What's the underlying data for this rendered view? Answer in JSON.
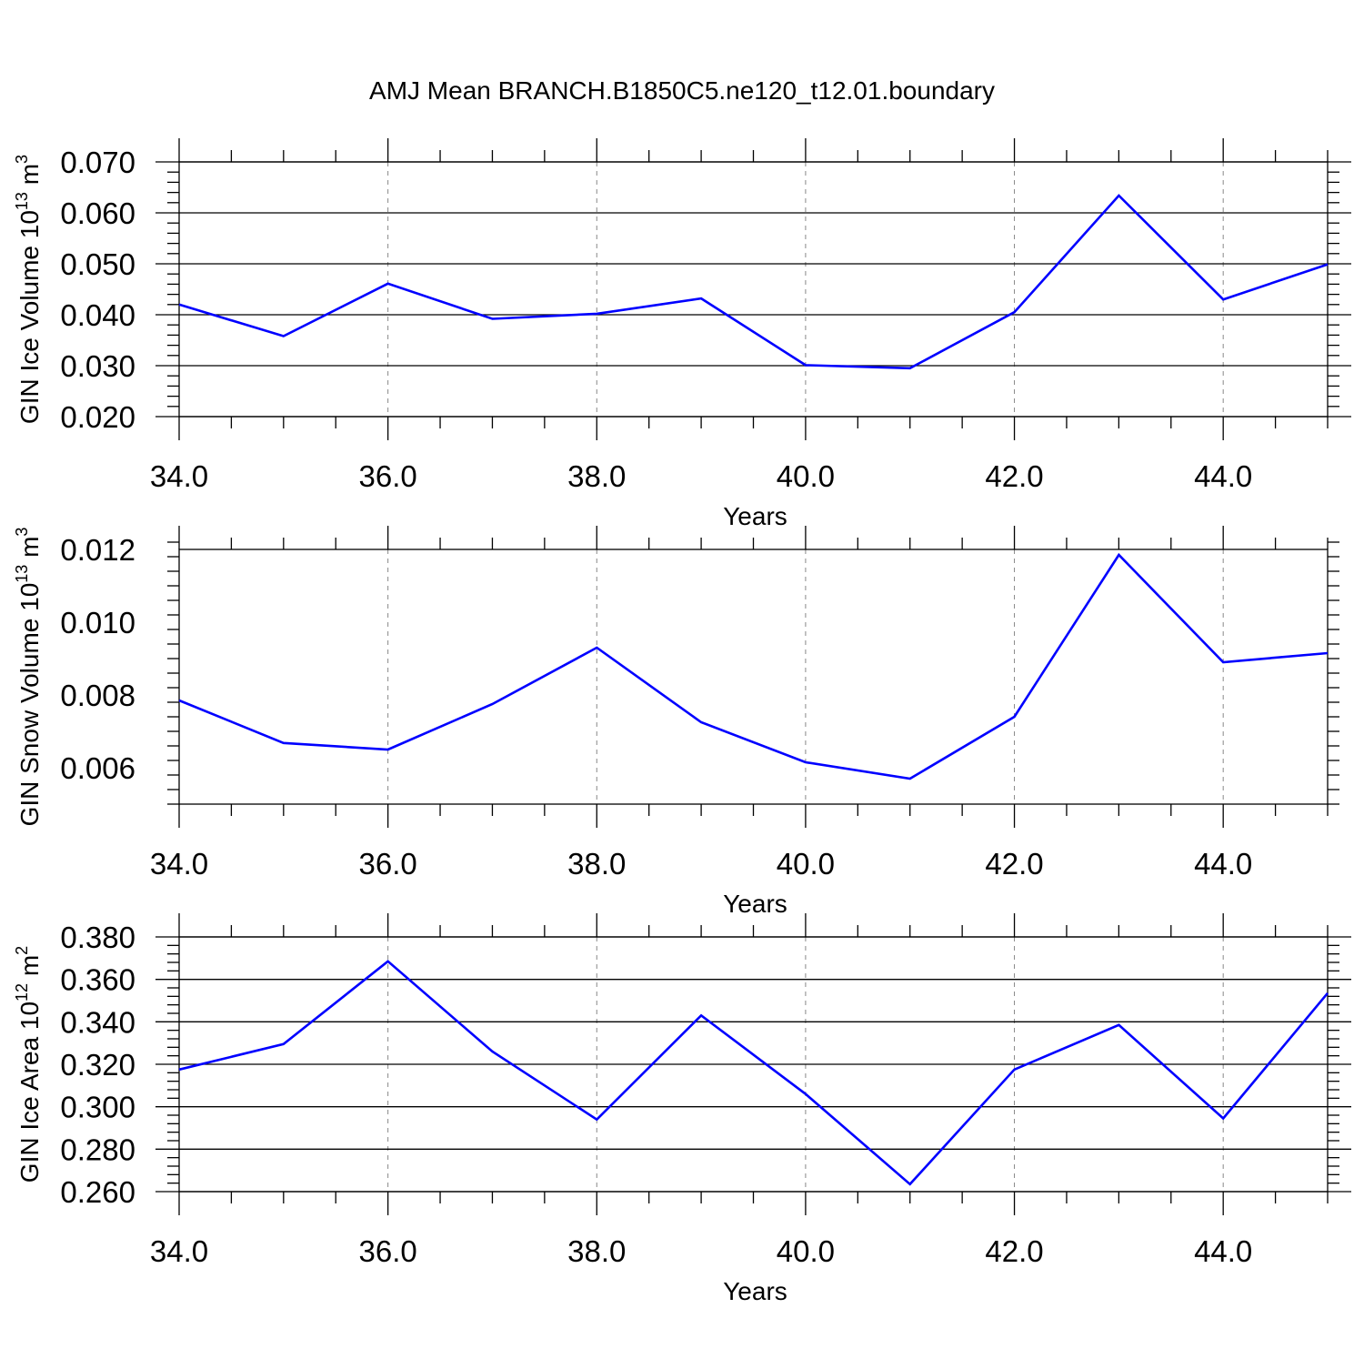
{
  "title": "AMJ Mean BRANCH.B1850C5.ne120_t12.01.boundary",
  "line_color": "#0000ff",
  "chart_data": [
    {
      "type": "line",
      "title": "AMJ Mean BRANCH.B1850C5.ne120_t12.01.boundary",
      "ylabel": "GIN Ice Volume 10",
      "ylabel_exp": "13",
      "ylabel_unit": "m",
      "ylabel_unit_exp": "3",
      "xlabel": "Years",
      "x": [
        34,
        35,
        36,
        37,
        38,
        39,
        40,
        41,
        42,
        43,
        44,
        45
      ],
      "series": [
        {
          "values": [
            0.042,
            0.0358,
            0.0461,
            0.0392,
            0.0402,
            0.0432,
            0.0301,
            0.0295,
            0.0405,
            0.0634,
            0.043,
            0.0499
          ]
        }
      ],
      "xlim": [
        34,
        45
      ],
      "ylim": [
        0.02,
        0.07
      ],
      "xticks": [
        "34.0",
        "36.0",
        "38.0",
        "40.0",
        "42.0",
        "44.0"
      ],
      "yticks": [
        "0.020",
        "0.030",
        "0.040",
        "0.050",
        "0.060",
        "0.070"
      ],
      "grid": "vertical-dashed"
    },
    {
      "type": "line",
      "ylabel": "GIN Snow Volume 10",
      "ylabel_exp": "13",
      "ylabel_unit": "m",
      "ylabel_unit_exp": "3",
      "xlabel": "Years",
      "x": [
        34,
        35,
        36,
        37,
        38,
        39,
        40,
        41,
        42,
        43,
        44,
        45
      ],
      "series": [
        {
          "values": [
            0.00785,
            0.00668,
            0.0065,
            0.00775,
            0.0093,
            0.00725,
            0.00615,
            0.0057,
            0.0074,
            0.01185,
            0.0089,
            0.00915
          ]
        }
      ],
      "xlim": [
        34,
        45
      ],
      "ylim": [
        0.005,
        0.012
      ],
      "xticks": [
        "34.0",
        "36.0",
        "38.0",
        "40.0",
        "42.0",
        "44.0"
      ],
      "yticks": [
        "0.006",
        "0.008",
        "0.010",
        "0.012"
      ],
      "grid": "vertical-dashed"
    },
    {
      "type": "line",
      "ylabel": "GIN Ice Area 10",
      "ylabel_exp": "12",
      "ylabel_unit": "m",
      "ylabel_unit_exp": "2",
      "xlabel": "Years",
      "x": [
        34,
        35,
        36,
        37,
        38,
        39,
        40,
        41,
        42,
        43,
        44,
        45
      ],
      "series": [
        {
          "values": [
            0.3175,
            0.3295,
            0.3685,
            0.326,
            0.294,
            0.343,
            0.306,
            0.2635,
            0.3175,
            0.3385,
            0.2945,
            0.3535
          ]
        }
      ],
      "xlim": [
        34,
        45
      ],
      "ylim": [
        0.26,
        0.38
      ],
      "xticks": [
        "34.0",
        "36.0",
        "38.0",
        "40.0",
        "42.0",
        "44.0"
      ],
      "yticks": [
        "0.260",
        "0.280",
        "0.300",
        "0.320",
        "0.340",
        "0.360",
        "0.380"
      ],
      "grid": "vertical-dashed"
    }
  ]
}
